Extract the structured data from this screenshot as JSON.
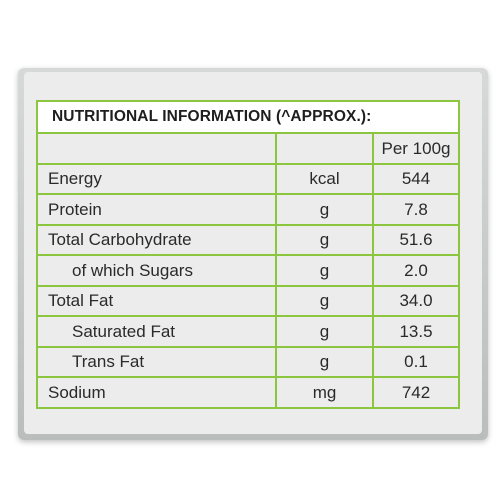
{
  "panel": {
    "title": "NUTRITIONAL INFORMATION (^APPROX.):"
  },
  "table": {
    "header": {
      "name": "",
      "unit": "",
      "value": "Per 100g"
    },
    "rows": [
      {
        "name": "Energy",
        "unit": "kcal",
        "value": "544"
      },
      {
        "name": "Protein",
        "unit": "g",
        "value": "7.8"
      },
      {
        "name": "Total Carbohydrate",
        "unit": "g",
        "value": "51.6"
      },
      {
        "name": "of which Sugars",
        "unit": "g",
        "value": "2.0"
      },
      {
        "name": "Total Fat",
        "unit": "g",
        "value": "34.0"
      },
      {
        "name": "Saturated Fat",
        "unit": "g",
        "value": "13.5"
      },
      {
        "name": "Trans Fat",
        "unit": "g",
        "value": "0.1"
      },
      {
        "name": "Sodium",
        "unit": "mg",
        "value": "742"
      }
    ]
  },
  "colors": {
    "border": "#8cc63f",
    "text": "#2a2a2a",
    "panel_bg": "#ececec"
  }
}
